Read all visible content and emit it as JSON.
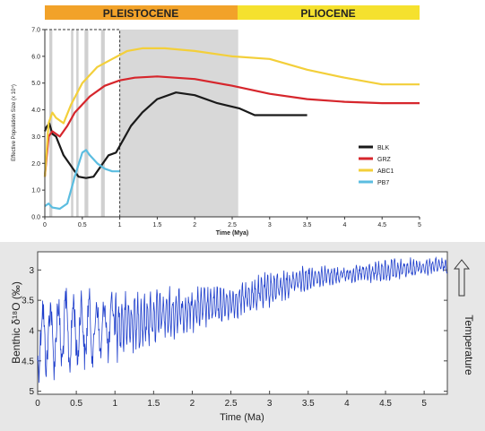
{
  "epoch_bar": {
    "pleistocene": "PLEISTOCENE",
    "pliocene": "PLIOCENE",
    "pleistocene_color": "#f2a229",
    "pliocene_color": "#f5e12e"
  },
  "chart_data": [
    {
      "type": "line",
      "xlabel": "Time (Mya)",
      "ylabel": "Effective Population Size (x 10⁴)",
      "xlim": [
        0,
        5
      ],
      "ylim": [
        0,
        7
      ],
      "x_ticks": [
        "0",
        "0.5",
        "1",
        "1.5",
        "2",
        "2.5",
        "3",
        "3.5",
        "4",
        "4.5",
        "5"
      ],
      "y_ticks": [
        "0.0",
        "1.0",
        "2.0",
        "3.0",
        "4.0",
        "5.0",
        "6.0",
        "7.0"
      ],
      "shaded_region": [
        0,
        2.58
      ],
      "dashed_box": [
        0,
        1.0
      ],
      "interglacial_bands": [
        [
          0.06,
          0.1
        ],
        [
          0.35,
          0.38
        ],
        [
          0.42,
          0.45
        ],
        [
          0.53,
          0.58
        ],
        [
          0.75,
          0.8
        ]
      ],
      "legend_position": "right",
      "series": [
        {
          "name": "BLK",
          "color": "#1a1a1a",
          "x": [
            0,
            0.02,
            0.06,
            0.1,
            0.15,
            0.25,
            0.35,
            0.45,
            0.55,
            0.65,
            0.75,
            0.85,
            0.95,
            1.05,
            1.15,
            1.3,
            1.5,
            1.75,
            2.0,
            2.3,
            2.6,
            2.8,
            3.2,
            3.5
          ],
          "values": [
            3.2,
            3.35,
            3.5,
            3.1,
            3.0,
            2.3,
            1.9,
            1.5,
            1.45,
            1.5,
            1.9,
            2.3,
            2.4,
            2.9,
            3.4,
            3.9,
            4.4,
            4.65,
            4.55,
            4.25,
            4.05,
            3.8,
            3.8,
            3.8
          ]
        },
        {
          "name": "GRZ",
          "color": "#d6262c",
          "x": [
            0,
            0.05,
            0.1,
            0.2,
            0.3,
            0.4,
            0.6,
            0.8,
            1.0,
            1.2,
            1.5,
            2.0,
            2.5,
            3.0,
            3.5,
            4.0,
            4.5,
            5.0
          ],
          "values": [
            1.5,
            3.0,
            3.2,
            3.0,
            3.4,
            3.9,
            4.5,
            4.9,
            5.1,
            5.2,
            5.25,
            5.15,
            4.9,
            4.6,
            4.4,
            4.3,
            4.25,
            4.25
          ]
        },
        {
          "name": "ABC1",
          "color": "#f3cf3a",
          "x": [
            0,
            0.05,
            0.1,
            0.15,
            0.25,
            0.35,
            0.5,
            0.7,
            0.9,
            1.1,
            1.3,
            1.6,
            2.0,
            2.5,
            3.0,
            3.5,
            4.0,
            4.5,
            5.0
          ],
          "values": [
            1.5,
            3.5,
            3.9,
            3.7,
            3.5,
            4.2,
            5.0,
            5.6,
            5.9,
            6.2,
            6.3,
            6.3,
            6.2,
            6.0,
            5.9,
            5.5,
            5.2,
            4.95,
            4.95
          ]
        },
        {
          "name": "PB7",
          "color": "#5bbde0",
          "x": [
            0,
            0.05,
            0.1,
            0.2,
            0.3,
            0.4,
            0.5,
            0.55,
            0.6,
            0.7,
            0.8,
            0.9,
            1.0
          ],
          "values": [
            0.4,
            0.5,
            0.35,
            0.3,
            0.5,
            1.5,
            2.4,
            2.5,
            2.3,
            2.0,
            1.8,
            1.7,
            1.7
          ]
        }
      ]
    },
    {
      "type": "line",
      "xlabel": "Time (Ma)",
      "ylabel": "Benthic δ¹⁸O (‰)",
      "right_label": "Temperature",
      "xlim": [
        0,
        5.3
      ],
      "ylim": [
        2.7,
        5.05
      ],
      "y_inverted": true,
      "x_ticks": [
        "0",
        "0.5",
        "1",
        "1.5",
        "2",
        "2.5",
        "3",
        "3.5",
        "4",
        "4.5",
        "5"
      ],
      "y_ticks": [
        "3",
        "3.5",
        "4",
        "4.5",
        "5"
      ],
      "series": [
        {
          "color": "#1f3fcc",
          "trend_x": [
            0,
            0.5,
            1.0,
            1.5,
            2.0,
            2.5,
            3.0,
            3.5,
            4.0,
            4.5,
            5.0,
            5.3
          ],
          "trend_lower": [
            4.75,
            4.65,
            4.45,
            4.2,
            4.0,
            3.8,
            3.6,
            3.3,
            3.2,
            3.2,
            3.1,
            3.05
          ],
          "trend_upper": [
            3.45,
            3.35,
            3.4,
            3.35,
            3.3,
            3.3,
            3.05,
            2.95,
            2.95,
            2.85,
            2.8,
            2.8
          ]
        }
      ]
    }
  ]
}
